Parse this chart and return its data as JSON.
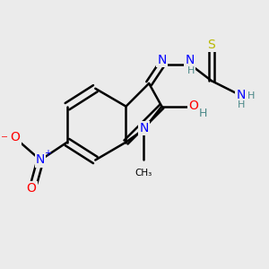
{
  "bg_color": "#ebebeb",
  "atom_colors": {
    "C": "#000000",
    "N": "#0000ff",
    "O": "#ff0000",
    "S": "#b8b800",
    "H": "#4a8888"
  },
  "bond_color": "#000000",
  "bond_width": 1.8,
  "figsize": [
    3.0,
    3.0
  ],
  "dpi": 100
}
